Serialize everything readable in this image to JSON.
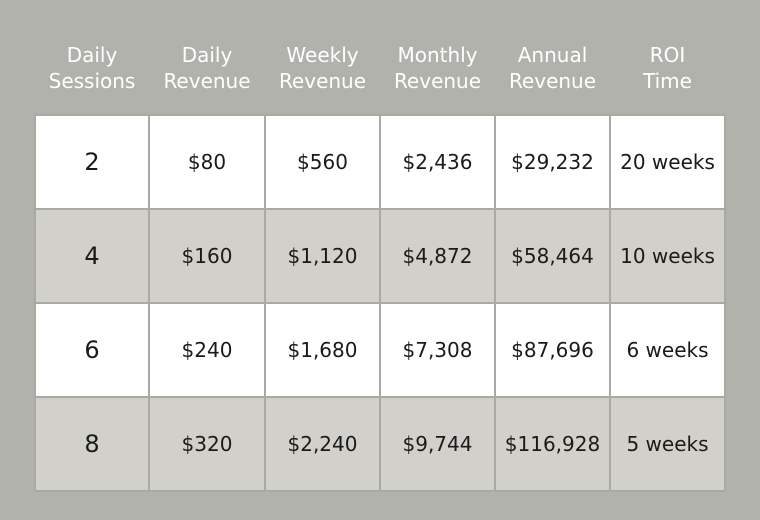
{
  "table": {
    "headers": [
      [
        "Daily",
        "Sessions"
      ],
      [
        "Daily",
        "Revenue"
      ],
      [
        "Weekly",
        "Revenue"
      ],
      [
        "Monthly",
        "Revenue"
      ],
      [
        "Annual",
        "Revenue"
      ],
      [
        "ROI",
        "Time"
      ]
    ],
    "rows": [
      [
        "2",
        "$80",
        "$560",
        "$2,436",
        "$29,232",
        "20 weeks"
      ],
      [
        "4",
        "$160",
        "$1,120",
        "$4,872",
        "$58,464",
        "10 weeks"
      ],
      [
        "6",
        "$240",
        "$1,680",
        "$7,308",
        "$87,696",
        "6 weeks"
      ],
      [
        "8",
        "$320",
        "$2,240",
        "$9,744",
        "$116,928",
        "5 weeks"
      ]
    ]
  },
  "colors": {
    "background": "#b1b2ac",
    "row_light": "#ffffff",
    "row_dark": "#d1d0cb",
    "header_text": "#ffffff",
    "cell_text": "#1a1a1a"
  }
}
